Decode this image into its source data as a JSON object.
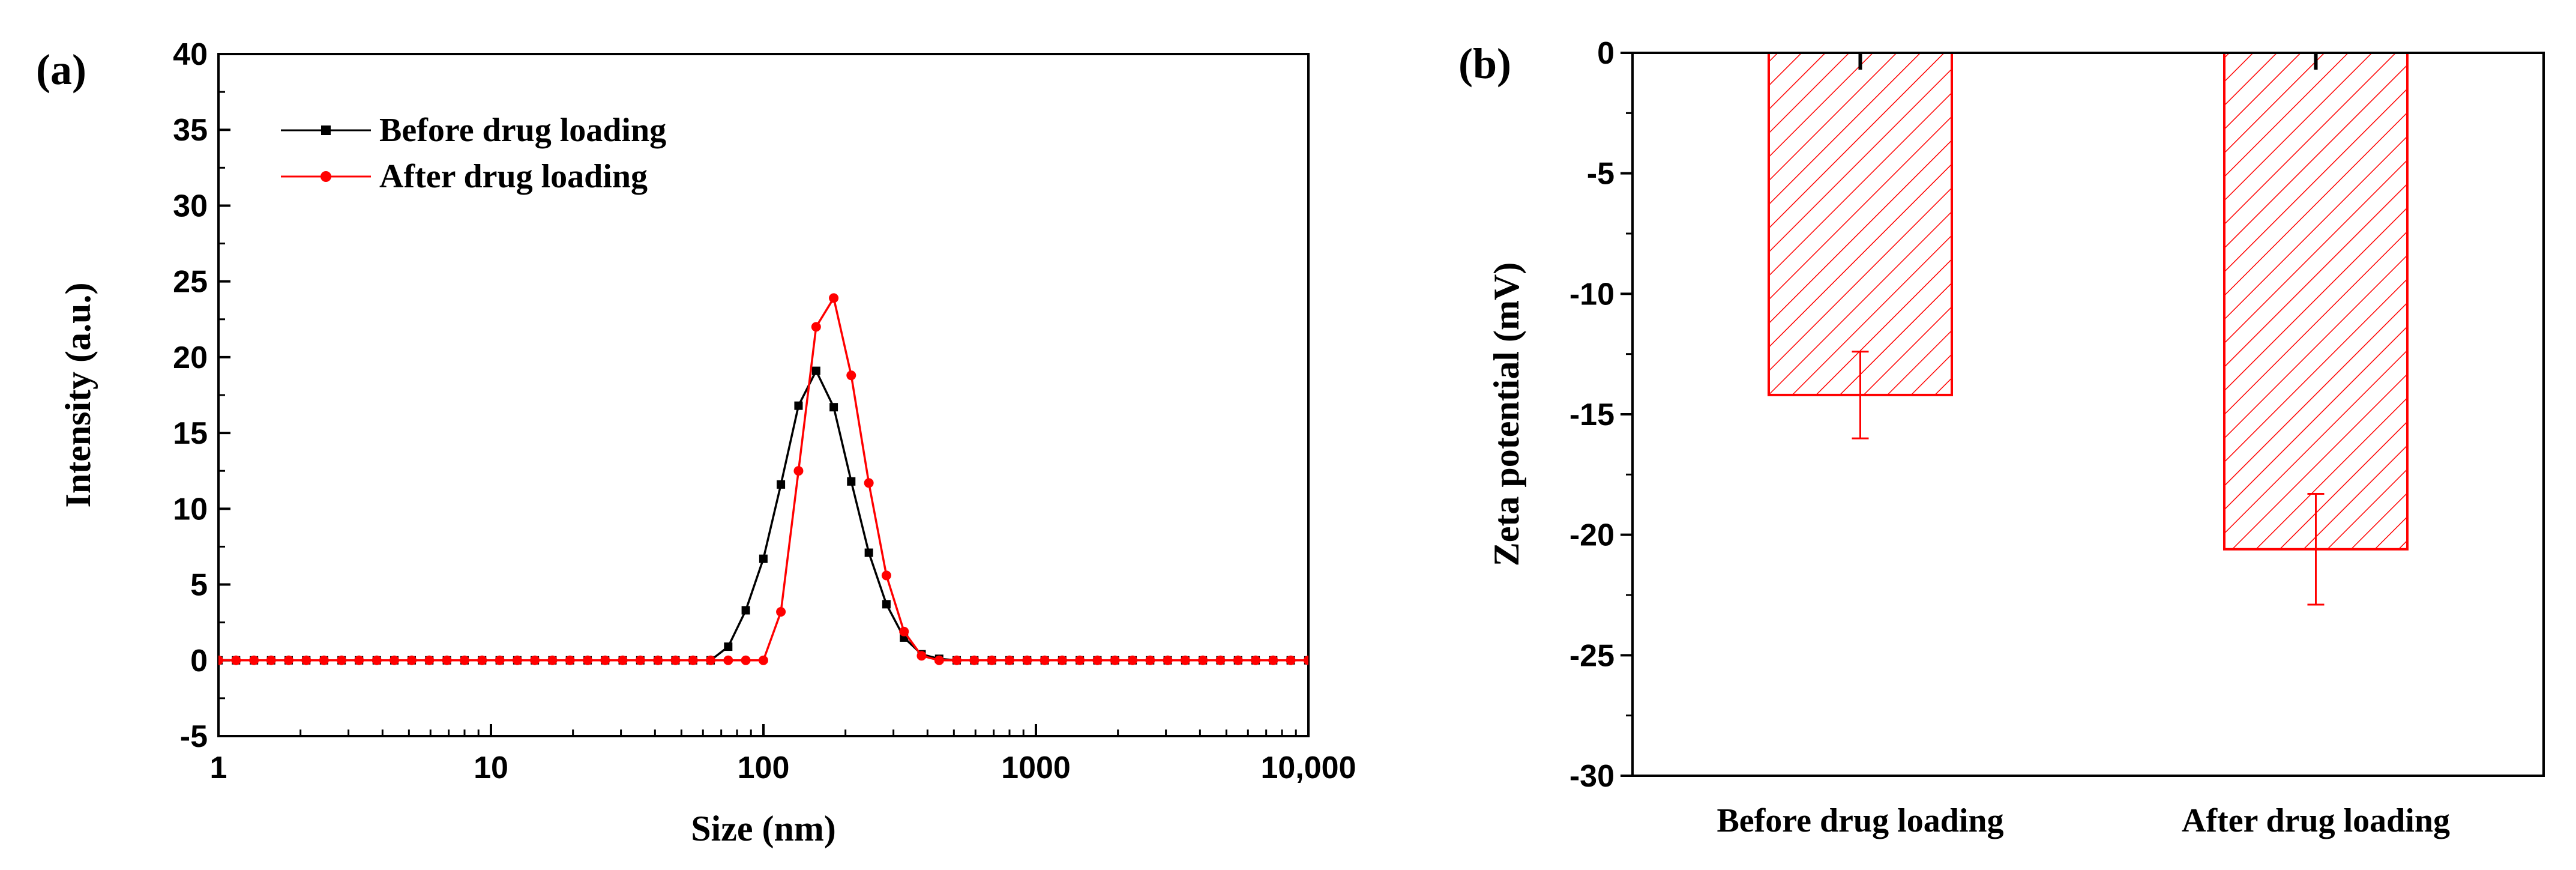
{
  "chart_data": [
    {
      "panel_label": "(a)",
      "type": "line",
      "xscale": "log",
      "xlabel": "Size (nm)",
      "ylabel": "Intensity (a.u.)",
      "xlim": [
        1,
        10000
      ],
      "ylim": [
        -5,
        40
      ],
      "xticks": [
        1,
        10,
        100,
        1000,
        10000
      ],
      "xtick_labels": [
        "1",
        "10",
        "100",
        "1000",
        "10,000"
      ],
      "yticks": [
        -5,
        0,
        5,
        10,
        15,
        20,
        25,
        30,
        35,
        40
      ],
      "ytick_labels": [
        "-5",
        "0",
        "5",
        "10",
        "15",
        "20",
        "25",
        "30",
        "35",
        "40"
      ],
      "legend_position": "top-left",
      "series": [
        {
          "name": "Before drug loading",
          "color": "#000000",
          "marker": "square",
          "x": [
            1,
            1.16,
            1.35,
            1.56,
            1.81,
            2.1,
            2.44,
            2.83,
            3.28,
            3.81,
            4.42,
            5.12,
            5.94,
            6.89,
            8,
            9.28,
            10.77,
            12.49,
            14.49,
            16.81,
            19.5,
            22.63,
            26.25,
            30.45,
            35.33,
            40.99,
            47.55,
            55.17,
            64,
            74.25,
            86.14,
            99.94,
            115.9,
            134.5,
            156.1,
            181.1,
            210,
            243.7,
            282.7,
            328,
            380.5,
            441.5,
            512,
            594,
            689,
            800,
            928,
            1077,
            1249,
            1449,
            1681,
            1950,
            2263,
            2625,
            3045,
            3533,
            4099,
            4755,
            5517,
            6400,
            7425,
            8614,
            9994
          ],
          "y": [
            0,
            0,
            0,
            0,
            0,
            0,
            0,
            0,
            0,
            0,
            0,
            0,
            0,
            0,
            0,
            0,
            0,
            0,
            0,
            0,
            0,
            0,
            0,
            0,
            0,
            0,
            0,
            0,
            0,
            0.9,
            3.3,
            6.7,
            11.6,
            16.8,
            19.1,
            16.7,
            11.8,
            7.1,
            3.7,
            1.5,
            0.4,
            0.1,
            0,
            0,
            0,
            0,
            0,
            0,
            0,
            0,
            0,
            0,
            0,
            0,
            0,
            0,
            0,
            0,
            0,
            0,
            0,
            0,
            0
          ]
        },
        {
          "name": "After drug loading",
          "color": "#ff0000",
          "marker": "circle",
          "x": [
            1,
            1.16,
            1.35,
            1.56,
            1.81,
            2.1,
            2.44,
            2.83,
            3.28,
            3.81,
            4.42,
            5.12,
            5.94,
            6.89,
            8,
            9.28,
            10.77,
            12.49,
            14.49,
            16.81,
            19.5,
            22.63,
            26.25,
            30.45,
            35.33,
            40.99,
            47.55,
            55.17,
            64,
            74.25,
            86.14,
            99.94,
            115.9,
            134.5,
            156.1,
            181.1,
            210,
            243.7,
            282.7,
            328,
            380.5,
            441.5,
            512,
            594,
            689,
            800,
            928,
            1077,
            1249,
            1449,
            1681,
            1950,
            2263,
            2625,
            3045,
            3533,
            4099,
            4755,
            5517,
            6400,
            7425,
            8614,
            9994
          ],
          "y": [
            0,
            0,
            0,
            0,
            0,
            0,
            0,
            0,
            0,
            0,
            0,
            0,
            0,
            0,
            0,
            0,
            0,
            0,
            0,
            0,
            0,
            0,
            0,
            0,
            0,
            0,
            0,
            0,
            0,
            0,
            0,
            0,
            3.2,
            12.5,
            22,
            23.9,
            18.8,
            11.7,
            5.6,
            1.9,
            0.3,
            0,
            0,
            0,
            0,
            0,
            0,
            0,
            0,
            0,
            0,
            0,
            0,
            0,
            0,
            0,
            0,
            0,
            0,
            0,
            0,
            0,
            0
          ]
        }
      ]
    },
    {
      "panel_label": "(b)",
      "type": "bar",
      "ylabel": "Zeta potential (mV)",
      "ylim": [
        -30,
        0
      ],
      "yticks": [
        0,
        -5,
        -10,
        -15,
        -20,
        -25,
        -30
      ],
      "ytick_labels": [
        "0",
        "-5",
        "-10",
        "-15",
        "-20",
        "-25",
        "-30"
      ],
      "categories": [
        "Before drug loading",
        "After drug loading"
      ],
      "values": [
        -14.2,
        -20.6
      ],
      "error": [
        1.8,
        2.3
      ],
      "bar_color": "#ff0000",
      "fill": "diagonal-hatch"
    }
  ]
}
